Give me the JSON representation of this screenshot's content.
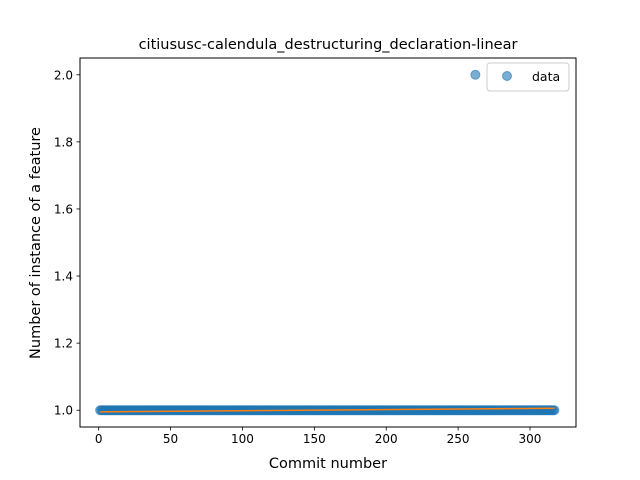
{
  "chart_data": {
    "type": "scatter",
    "title": "citiususc-calendula_destructuring_declaration-linear",
    "xlabel": "Commit number",
    "ylabel": "Number of instance of a feature",
    "xlim": [
      -13,
      332
    ],
    "ylim": [
      0.95,
      2.05
    ],
    "x_ticks": [
      0,
      50,
      100,
      150,
      200,
      250,
      300
    ],
    "y_ticks": [
      1.0,
      1.2,
      1.4,
      1.6,
      1.8,
      2.0
    ],
    "x_tick_labels": [
      "0",
      "50",
      "100",
      "150",
      "200",
      "250",
      "300"
    ],
    "y_tick_labels": [
      "1.0",
      "1.2",
      "1.4",
      "1.6",
      "1.8",
      "2.0"
    ],
    "grid": false,
    "legend": {
      "position": "top-right",
      "entries": [
        "data"
      ]
    },
    "series": [
      {
        "name": "data",
        "kind": "scatter",
        "color": "#1f77b4",
        "alpha": 0.6,
        "x_range": [
          1,
          317
        ],
        "y_value": 1,
        "outliers": [
          {
            "x": 262,
            "y": 2
          }
        ]
      },
      {
        "kind": "line",
        "color": "#ff7f0e",
        "x": [
          1,
          317
        ],
        "y": [
          0.995,
          1.006
        ]
      }
    ]
  }
}
